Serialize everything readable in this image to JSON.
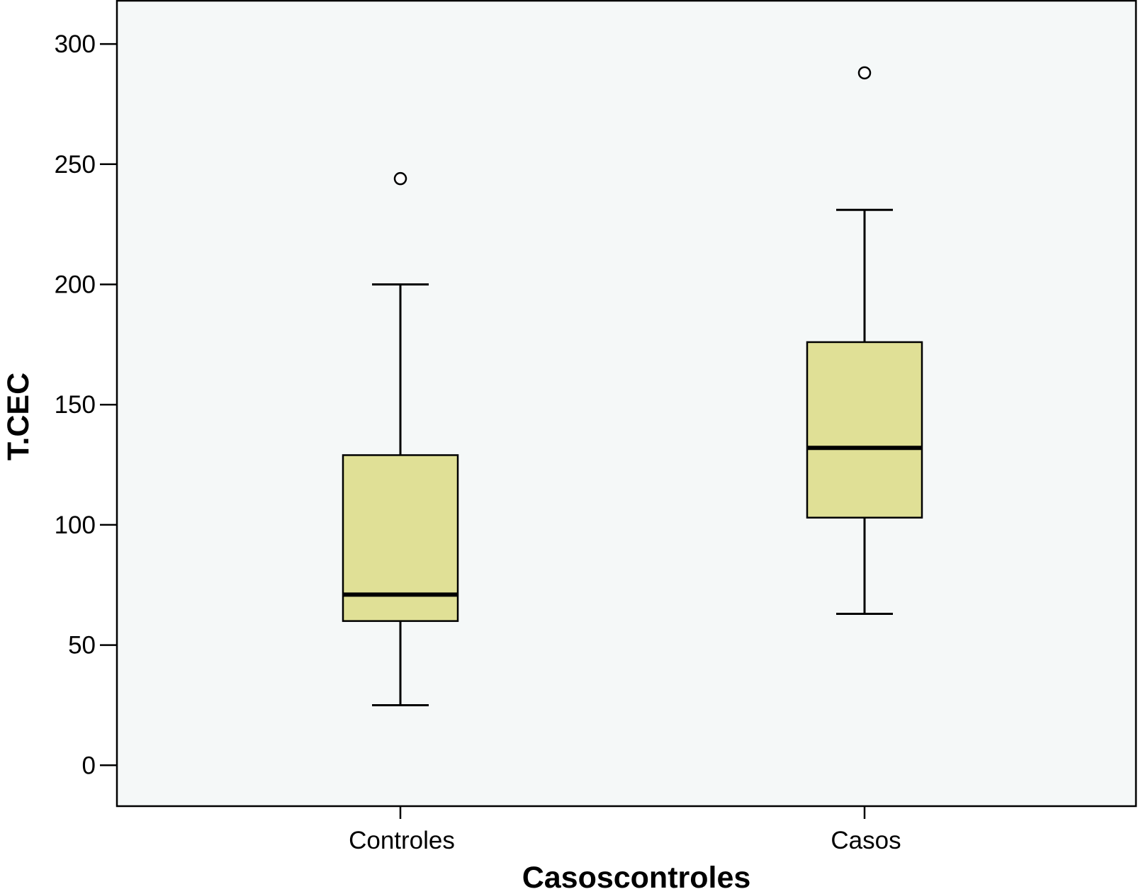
{
  "chart_data": {
    "type": "box",
    "title": "",
    "xlabel": "Casoscontroles",
    "ylabel": "T.CEC",
    "categories": [
      "Controles",
      "Casos"
    ],
    "ylim": [
      -17,
      318
    ],
    "yticks": [
      0,
      50,
      100,
      150,
      200,
      250,
      300
    ],
    "grid": false,
    "boxes": [
      {
        "category": "Controles",
        "whisker_low": 25,
        "q1": 60,
        "median": 71,
        "q3": 129,
        "whisker_high": 200,
        "outliers": [
          244
        ]
      },
      {
        "category": "Casos",
        "whisker_low": 63,
        "q1": 103,
        "median": 132,
        "q3": 176,
        "whisker_high": 231,
        "outliers": [
          288
        ]
      }
    ],
    "colors": {
      "box_fill": "#e0e096",
      "plot_bg": "#f5f8f8",
      "line": "#000000"
    }
  }
}
